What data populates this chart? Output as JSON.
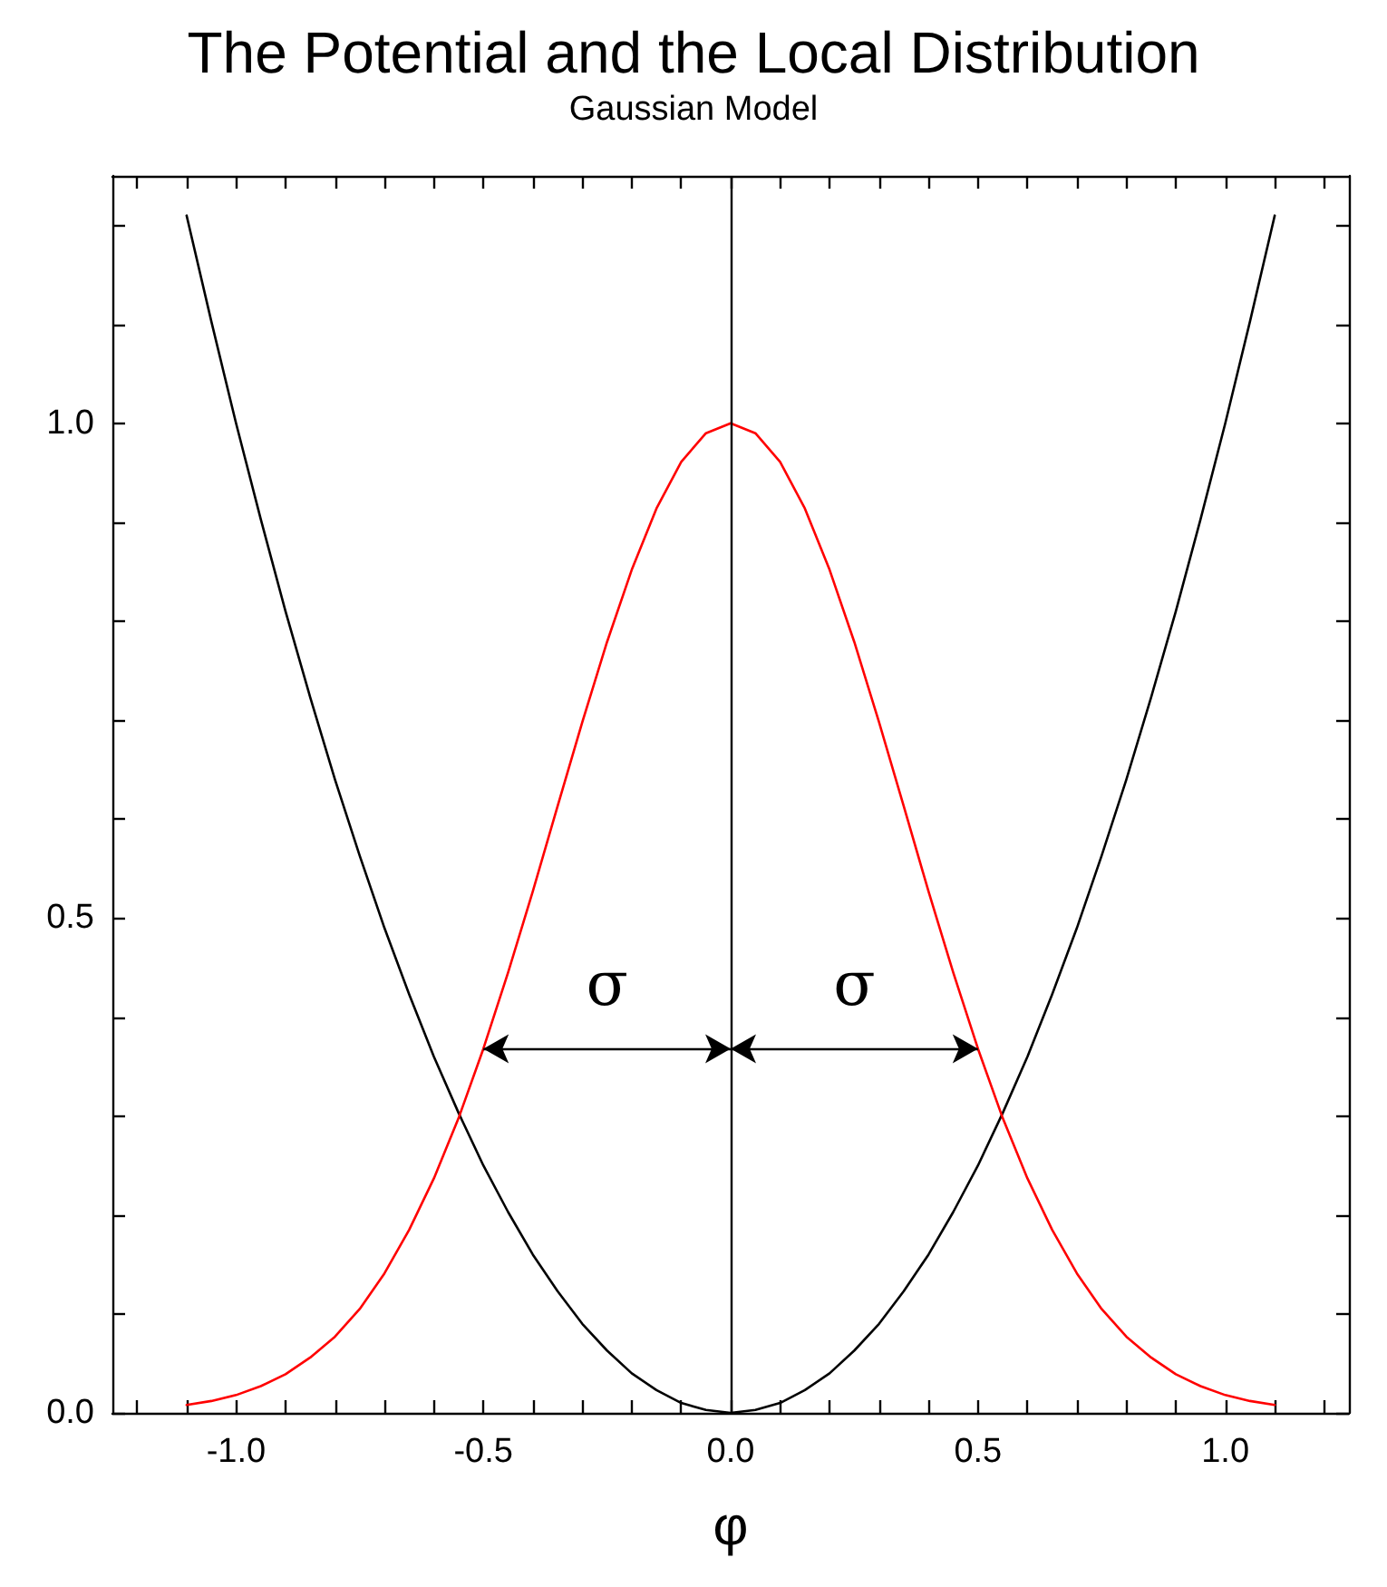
{
  "chart_data": {
    "type": "line",
    "title": "The Potential and the Local Distribution",
    "subtitle": "Gaussian Model",
    "xlabel": "φ",
    "x": [
      -1.1,
      -1.05,
      -1.0,
      -0.95,
      -0.9,
      -0.85,
      -0.8,
      -0.75,
      -0.7,
      -0.65,
      -0.6,
      -0.55,
      -0.5,
      -0.45,
      -0.4,
      -0.35,
      -0.3,
      -0.25,
      -0.2,
      -0.15,
      -0.1,
      -0.05,
      0,
      0.05,
      0.1,
      0.15,
      0.2,
      0.25,
      0.3,
      0.35,
      0.4,
      0.45,
      0.5,
      0.55,
      0.6,
      0.65,
      0.7,
      0.75,
      0.8,
      0.85,
      0.9,
      0.95,
      1.0,
      1.05,
      1.1
    ],
    "series": [
      {
        "color": "#000000",
        "values": [
          1.21,
          1.103,
          1.0,
          0.903,
          0.81,
          0.723,
          0.64,
          0.563,
          0.49,
          0.423,
          0.36,
          0.303,
          0.25,
          0.203,
          0.16,
          0.123,
          0.09,
          0.063,
          0.04,
          0.023,
          0.01,
          0.003,
          0,
          0.003,
          0.01,
          0.023,
          0.04,
          0.063,
          0.09,
          0.123,
          0.16,
          0.203,
          0.25,
          0.303,
          0.36,
          0.423,
          0.49,
          0.563,
          0.64,
          0.723,
          0.81,
          0.903,
          1.0,
          1.103,
          1.21
        ]
      },
      {
        "color": "#ff0000",
        "values": [
          0.008,
          0.012,
          0.018,
          0.027,
          0.039,
          0.056,
          0.077,
          0.105,
          0.141,
          0.185,
          0.237,
          0.298,
          0.368,
          0.445,
          0.527,
          0.613,
          0.698,
          0.779,
          0.852,
          0.914,
          0.961,
          0.99,
          1.0,
          0.99,
          0.961,
          0.914,
          0.852,
          0.779,
          0.698,
          0.613,
          0.527,
          0.445,
          0.368,
          0.298,
          0.237,
          0.185,
          0.141,
          0.105,
          0.077,
          0.056,
          0.039,
          0.027,
          0.018,
          0.012,
          0.008
        ]
      }
    ],
    "xlim": [
      -1.25,
      1.25
    ],
    "ylim": [
      0,
      1.25
    ],
    "xticks": [
      {
        "value": -1.2,
        "label": null
      },
      {
        "value": -1.1,
        "label": null
      },
      {
        "value": -1.0,
        "label": "-1.0"
      },
      {
        "value": -0.9,
        "label": null
      },
      {
        "value": -0.8,
        "label": null
      },
      {
        "value": -0.7,
        "label": null
      },
      {
        "value": -0.6,
        "label": null
      },
      {
        "value": -0.5,
        "label": "-0.5"
      },
      {
        "value": -0.4,
        "label": null
      },
      {
        "value": -0.3,
        "label": null
      },
      {
        "value": -0.2,
        "label": null
      },
      {
        "value": -0.1,
        "label": null
      },
      {
        "value": 0,
        "label": "0.0"
      },
      {
        "value": 0.1,
        "label": null
      },
      {
        "value": 0.2,
        "label": null
      },
      {
        "value": 0.3,
        "label": null
      },
      {
        "value": 0.4,
        "label": null
      },
      {
        "value": 0.5,
        "label": "0.5"
      },
      {
        "value": 0.6,
        "label": null
      },
      {
        "value": 0.7,
        "label": null
      },
      {
        "value": 0.8,
        "label": null
      },
      {
        "value": 0.9,
        "label": null
      },
      {
        "value": 1.0,
        "label": "1.0"
      },
      {
        "value": 1.1,
        "label": null
      },
      {
        "value": 1.2,
        "label": null
      }
    ],
    "yticks": [
      {
        "value": 0,
        "label": "0.0"
      },
      {
        "value": 0.1,
        "label": null
      },
      {
        "value": 0.2,
        "label": null
      },
      {
        "value": 0.3,
        "label": null
      },
      {
        "value": 0.4,
        "label": null
      },
      {
        "value": 0.5,
        "label": "0.5"
      },
      {
        "value": 0.6,
        "label": null
      },
      {
        "value": 0.7,
        "label": null
      },
      {
        "value": 0.8,
        "label": null
      },
      {
        "value": 0.9,
        "label": null
      },
      {
        "value": 1.0,
        "label": "1.0"
      },
      {
        "value": 1.1,
        "label": null
      },
      {
        "value": 1.2,
        "label": null
      }
    ],
    "ref_lines": [
      {
        "axis": "x",
        "value": 0,
        "color": "#000000"
      }
    ],
    "annotations": [
      {
        "text": "σ",
        "x": -0.5,
        "y": 0.368
      },
      {
        "text": "σ",
        "x": 0.5,
        "y": 0.368
      }
    ],
    "grid": false,
    "marker": "none",
    "line_style": "solid"
  }
}
